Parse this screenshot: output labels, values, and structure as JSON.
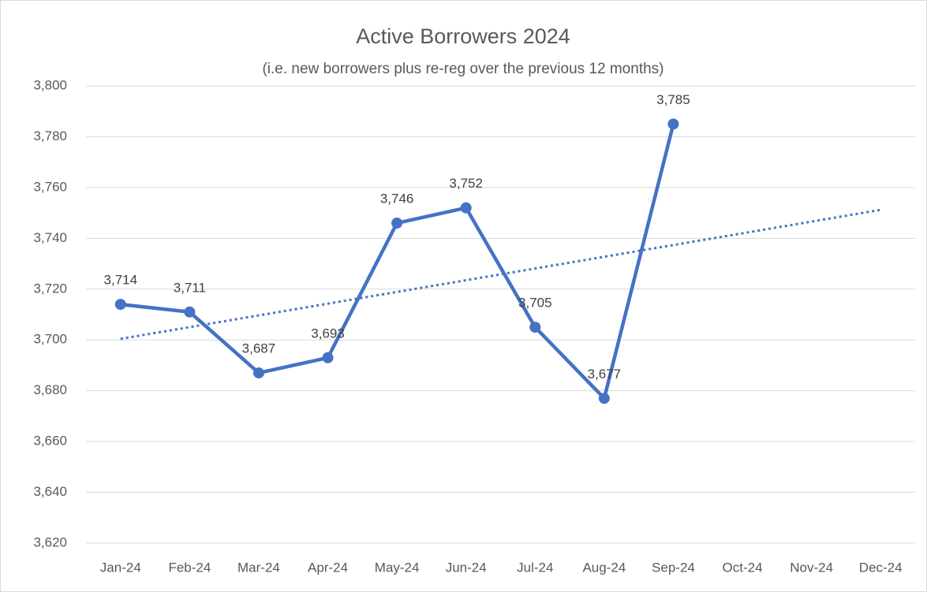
{
  "chart_data": {
    "type": "line",
    "title": "Active Borrowers 2024",
    "subtitle": "(i.e. new borrowers plus re-reg over the previous 12 months)",
    "categories": [
      "Jan-24",
      "Feb-24",
      "Mar-24",
      "Apr-24",
      "May-24",
      "Jun-24",
      "Jul-24",
      "Aug-24",
      "Sep-24",
      "Oct-24",
      "Nov-24",
      "Dec-24"
    ],
    "series": [
      {
        "name": "Active Borrowers",
        "color": "#4472c4",
        "values": [
          3714,
          3711,
          3687,
          3693,
          3746,
          3752,
          3705,
          3677,
          3785,
          null,
          null,
          null
        ],
        "value_labels": [
          "3,714",
          "3,711",
          "3,687",
          "3,693",
          "3,746",
          "3,752",
          "3,705",
          "3,677",
          "3,785",
          null,
          null,
          null
        ]
      }
    ],
    "trendline": "linear",
    "ylim": [
      3620,
      3800
    ],
    "yticks": [
      {
        "value": 3620,
        "label": "3,620"
      },
      {
        "value": 3640,
        "label": "3,640"
      },
      {
        "value": 3660,
        "label": "3,660"
      },
      {
        "value": 3680,
        "label": "3,680"
      },
      {
        "value": 3700,
        "label": "3,700"
      },
      {
        "value": 3720,
        "label": "3,720"
      },
      {
        "value": 3740,
        "label": "3,740"
      },
      {
        "value": 3760,
        "label": "3,760"
      },
      {
        "value": 3780,
        "label": "3,780"
      },
      {
        "value": 3800,
        "label": "3,800"
      }
    ],
    "grid": true
  }
}
